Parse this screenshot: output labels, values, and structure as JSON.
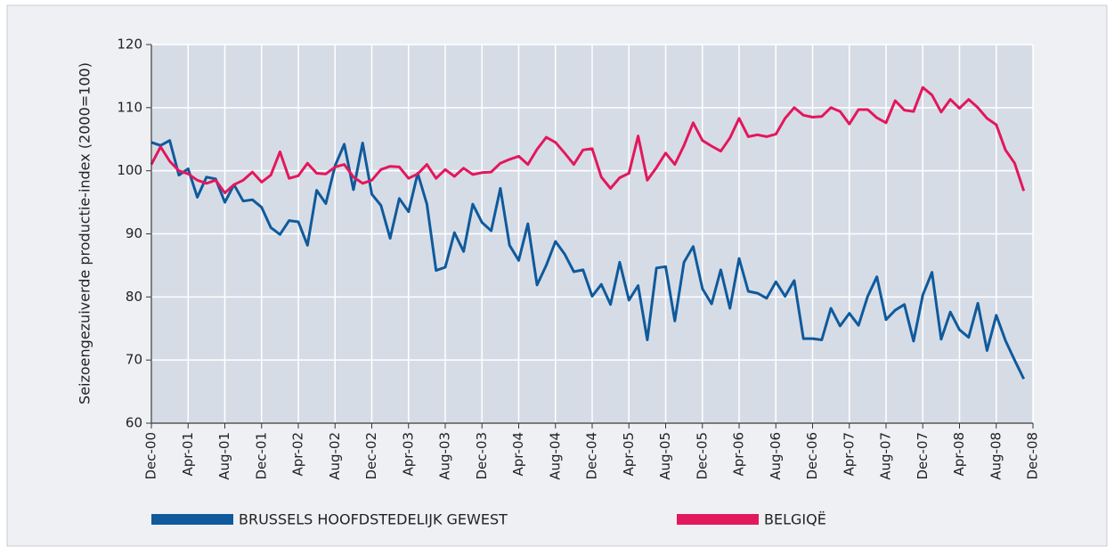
{
  "chart_data": {
    "type": "line",
    "y_label": "Seizoengezuiverde productie-index (2000=100)",
    "categories": [
      "Dec-00",
      null,
      null,
      null,
      "Apr-01",
      null,
      null,
      null,
      "Aug-01",
      null,
      null,
      null,
      "Dec-01",
      null,
      null,
      null,
      "Apr-02",
      null,
      null,
      null,
      "Aug-02",
      null,
      null,
      null,
      "Dec-02",
      null,
      null,
      null,
      "Apr-03",
      null,
      null,
      null,
      "Aug-03",
      null,
      null,
      null,
      "Dec-03",
      null,
      null,
      null,
      "Apr-04",
      null,
      null,
      null,
      "Aug-04",
      null,
      null,
      null,
      "Dec-04",
      null,
      null,
      null,
      "Apr-05",
      null,
      null,
      null,
      "Aug-05",
      null,
      null,
      null,
      "Dec-05",
      null,
      null,
      null,
      "Apr-06",
      null,
      null,
      null,
      "Aug-06",
      null,
      null,
      null,
      "Dec-06",
      null,
      null,
      null,
      "Apr-07",
      null,
      null,
      null,
      "Aug-07",
      null,
      null,
      null,
      "Dec-07",
      null,
      null,
      null,
      "Apr-08",
      null,
      null,
      null,
      "Aug-08",
      null,
      null,
      null,
      "Dec-08"
    ],
    "series": [
      {
        "name": "BRUSSELS HOOFDSTEDELIJK GEWEST",
        "color": "#0f5a9c",
        "values": [
          104.5,
          104,
          104.8,
          99.3,
          100.3,
          95.8,
          99,
          98.7,
          95,
          97.8,
          95.2,
          95.4,
          94.2,
          91,
          89.9,
          92.1,
          91.9,
          88.2,
          96.9,
          94.8,
          100.8,
          104.2,
          97,
          104.4,
          96.3,
          94.5,
          89.3,
          95.6,
          93.5,
          99.6,
          94.7,
          84.2,
          84.7,
          90.2,
          87.2,
          94.7,
          91.8,
          90.5,
          97.2,
          88.2,
          85.8,
          91.6,
          81.9,
          85,
          88.8,
          86.8,
          84,
          84.3,
          80.1,
          82,
          78.8,
          85.5,
          79.5,
          81.8,
          73.2,
          84.6,
          84.8,
          76.2,
          85.5,
          88,
          81.3,
          78.9,
          84.3,
          78.2,
          86.1,
          80.9,
          80.6,
          79.8,
          82.4,
          80.1,
          82.6,
          73.4,
          73.4,
          73.2,
          78.2,
          75.4,
          77.4,
          75.5,
          80.1,
          83.2,
          76.4,
          77.9,
          78.8,
          73,
          80.3,
          83.9,
          73.3,
          77.6,
          74.8,
          73.6,
          79,
          71.5,
          77.1,
          73.1,
          70,
          67,
          null
        ]
      },
      {
        "name": "BELGIQË",
        "color": "#e3175c",
        "values": [
          101,
          103.8,
          101.5,
          100,
          99.5,
          98.5,
          98,
          98.5,
          96.5,
          97.8,
          98.5,
          99.8,
          98.2,
          99.3,
          103,
          98.8,
          99.2,
          101.2,
          99.6,
          99.5,
          100.6,
          101,
          99,
          98,
          98.5,
          100.2,
          100.7,
          100.6,
          98.8,
          99.5,
          101,
          98.8,
          100.2,
          99.1,
          100.4,
          99.4,
          99.7,
          99.8,
          101.2,
          101.8,
          102.3,
          101,
          103.4,
          105.3,
          104.5,
          102.8,
          101,
          103.3,
          103.5,
          99,
          97.2,
          98.9,
          99.6,
          105.5,
          98.5,
          100.5,
          102.8,
          101,
          104,
          107.6,
          104.8,
          103.9,
          103.1,
          105.2,
          108.3,
          105.4,
          105.7,
          105.4,
          105.8,
          108.3,
          110,
          108.8,
          108.5,
          108.6,
          110,
          109.4,
          107.4,
          109.7,
          109.7,
          108.4,
          107.6,
          111.1,
          109.6,
          109.4,
          113.2,
          112,
          109.3,
          111.3,
          109.9,
          111.3,
          110,
          108.3,
          107.3,
          103.3,
          101.2,
          96.8,
          null
        ]
      }
    ],
    "ylim": [
      60,
      120
    ],
    "yticks": [
      60,
      70,
      80,
      90,
      100,
      110,
      120
    ],
    "grid": true
  }
}
